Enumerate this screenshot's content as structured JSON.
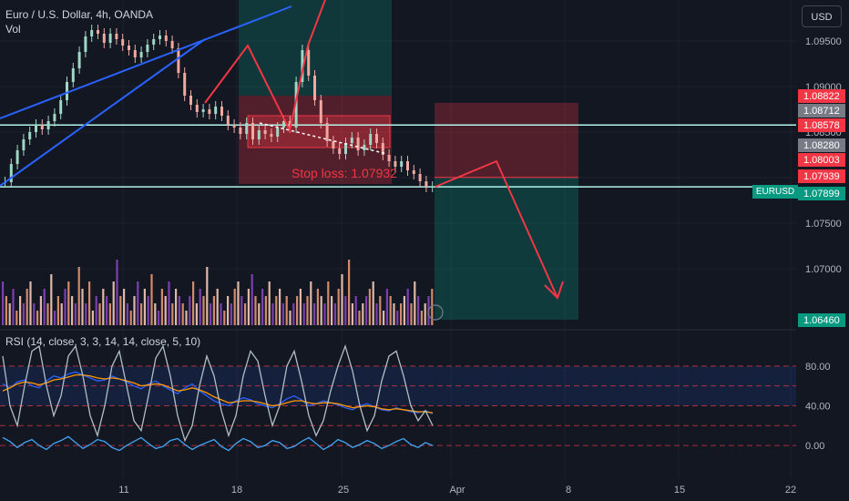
{
  "header": {
    "title": "Euro / U.S. Dollar, 4h, OANDA",
    "volume_label": "Vol"
  },
  "currency_button": "USD",
  "rsi_label": "RSI (14, close, 3, 3, 14, 14, close, 5, 10)",
  "stop_loss_text": "Stop loss: 1.07932",
  "pair_tag": "EURUSD",
  "colors": {
    "background": "#131722",
    "up": "#089981",
    "down": "#f23645",
    "trendline": "#2962ff",
    "arrow": "#f23645",
    "price_line": "#b2f5ea"
  },
  "chart_data": [
    {
      "type": "line",
      "title": "Euro / U.S. Dollar, 4h, OANDA",
      "price_axis": {
        "labels": [
          "1.09500",
          "1.09000",
          "1.08500",
          "1.08000",
          "1.07500",
          "1.07000"
        ],
        "ylim": [
          1.0635,
          1.0995
        ]
      },
      "price_tags": [
        {
          "value": "1.08822",
          "color": "#f23645"
        },
        {
          "value": "1.08712",
          "color": "#787b86"
        },
        {
          "value": "1.08578",
          "color": "#f23645"
        },
        {
          "value": "1.08280",
          "color": "#787b86"
        },
        {
          "value": "1.08003",
          "color": "#f23645"
        },
        {
          "value": "1.07939",
          "color": "#f23645"
        },
        {
          "value": "1.07899",
          "color": "#089981"
        },
        {
          "value": "1.06460",
          "color": "#089981"
        }
      ],
      "x_tick_labels": [
        "11",
        "18",
        "25",
        "Apr",
        "8",
        "15",
        "22"
      ],
      "close_series": [
        1.0795,
        1.0815,
        1.083,
        1.0842,
        1.085,
        1.0858,
        1.0853,
        1.0862,
        1.087,
        1.0885,
        1.0905,
        1.092,
        1.0938,
        1.0955,
        1.0962,
        1.0958,
        1.0948,
        1.0958,
        1.0952,
        1.0945,
        1.094,
        1.0932,
        1.0938,
        1.0946,
        1.0952,
        1.0956,
        1.095,
        1.0942,
        1.0915,
        1.089,
        1.088,
        1.0872,
        1.0875,
        1.087,
        1.0878,
        1.0868,
        1.0858,
        1.0855,
        1.0848,
        1.086,
        1.0842,
        1.0852,
        1.0848,
        1.0845,
        1.0855,
        1.0862,
        1.0855,
        1.0905,
        1.094,
        1.0912,
        1.0885,
        1.086,
        1.084,
        1.0832,
        1.0826,
        1.0838,
        1.0844,
        1.083,
        1.0836,
        1.0848,
        1.0838,
        1.0825,
        1.0818,
        1.0812,
        1.0818,
        1.0808,
        1.0804,
        1.0796,
        1.079,
        1.079
      ],
      "trendline": [
        [
          1.0865,
          1.0988
        ],
        [
          1.0791,
          1.0952
        ]
      ],
      "stop_loss": 1.07932,
      "projection": [
        1.079,
        1.0818,
        1.0668
      ]
    },
    {
      "type": "bar",
      "title": "Vol",
      "values": [
        6,
        4,
        3,
        5,
        2,
        4,
        3,
        5,
        6,
        3,
        2,
        4,
        5,
        3,
        7,
        2,
        4,
        3,
        5,
        6,
        4,
        3,
        8,
        5,
        3,
        6,
        2,
        4,
        3,
        5,
        4,
        3,
        6,
        9,
        4,
        5,
        3,
        2,
        4,
        6,
        3,
        5,
        4,
        7,
        3,
        2,
        5,
        4,
        6,
        3,
        5,
        4,
        3,
        2,
        4,
        6,
        3,
        5,
        4,
        8,
        3,
        4,
        5,
        3,
        2,
        4,
        3,
        5,
        6,
        4,
        3,
        5,
        7,
        4,
        3,
        5,
        4,
        6,
        3,
        4,
        5,
        3,
        4,
        2,
        3,
        4,
        5,
        3,
        4,
        6,
        3,
        5,
        4,
        3,
        6,
        4,
        3,
        5,
        7,
        4,
        9,
        3,
        4,
        2,
        3,
        4,
        5,
        6,
        3,
        4,
        2,
        5,
        4,
        3,
        2,
        3,
        4,
        5,
        3,
        6,
        4,
        2,
        3,
        4,
        5
      ]
    },
    {
      "type": "line",
      "title": "RSI (14, close, 3, 3, 14, 14, close, 5, 10)",
      "levels": [
        "80.00",
        "40.00",
        "0.00"
      ],
      "ylim": [
        -10,
        100
      ],
      "series": [
        {
          "color": "#2962ff",
          "values": [
            62,
            58,
            64,
            66,
            60,
            58,
            65,
            70,
            68,
            72,
            74,
            71,
            68,
            65,
            66,
            70,
            67,
            64,
            60,
            57,
            62,
            65,
            60,
            56,
            52,
            58,
            62,
            55,
            50,
            45,
            42,
            40,
            45,
            48,
            46,
            42,
            40,
            38,
            42,
            47,
            50,
            46,
            40,
            42,
            45,
            43,
            41,
            38,
            36,
            40,
            42,
            39,
            36,
            35,
            38,
            36,
            34,
            33,
            35,
            32
          ]
        },
        {
          "color": "#ff9800",
          "values": [
            55,
            58,
            62,
            64,
            63,
            61,
            63,
            66,
            67,
            69,
            71,
            71,
            70,
            68,
            67,
            68,
            67,
            65,
            63,
            60,
            61,
            62,
            61,
            58,
            55,
            56,
            58,
            56,
            53,
            49,
            46,
            43,
            44,
            45,
            45,
            44,
            42,
            40,
            41,
            43,
            45,
            45,
            43,
            42,
            43,
            43,
            42,
            40,
            38,
            39,
            40,
            39,
            37,
            36,
            37,
            36,
            35,
            34,
            34,
            33
          ]
        },
        {
          "color": "#b0bec5",
          "values": [
            90,
            40,
            20,
            60,
            95,
            100,
            60,
            30,
            50,
            90,
            100,
            70,
            30,
            10,
            40,
            80,
            95,
            60,
            25,
            15,
            50,
            88,
            100,
            70,
            30,
            5,
            20,
            60,
            90,
            70,
            35,
            10,
            30,
            70,
            95,
            85,
            50,
            20,
            40,
            80,
            95,
            65,
            30,
            10,
            25,
            55,
            80,
            100,
            75,
            40,
            15,
            30,
            65,
            90,
            95,
            70,
            40,
            25,
            35,
            20
          ]
        },
        {
          "color": "#42a5f5",
          "values": [
            8,
            4,
            -2,
            3,
            6,
            0,
            -4,
            2,
            5,
            9,
            3,
            -3,
            1,
            6,
            4,
            -2,
            -5,
            0,
            4,
            8,
            2,
            -3,
            -1,
            5,
            7,
            1,
            -4,
            0,
            3,
            6,
            -1,
            -5,
            2,
            7,
            4,
            -2,
            0,
            5,
            3,
            -3,
            -1,
            4,
            8,
            2,
            -4,
            0,
            6,
            3,
            -2,
            1,
            5,
            2,
            -3,
            0,
            4,
            7,
            1,
            -2,
            3,
            0
          ]
        }
      ]
    }
  ]
}
